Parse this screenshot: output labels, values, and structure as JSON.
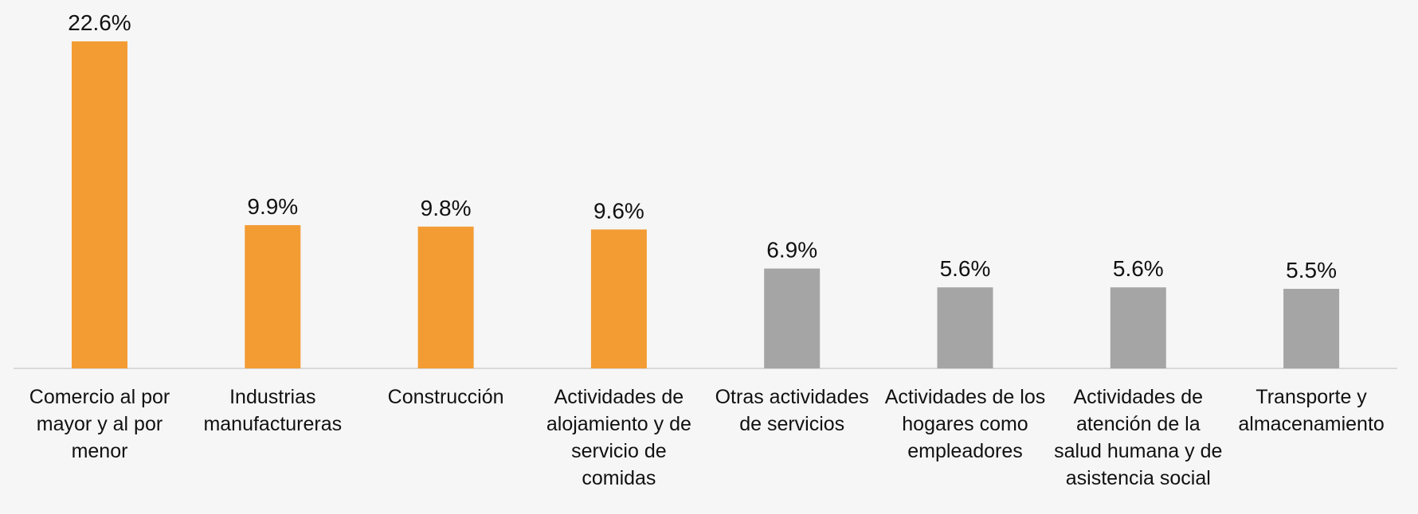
{
  "chart_data": {
    "type": "bar",
    "categories": [
      "Comercio al por mayor y al por menor",
      "Industrias manufactureras",
      "Construcción",
      "Actividades de alojamiento y de servicio de comidas",
      "Otras actividades de servicios",
      "Actividades de los hogares como empleadores",
      "Actividades de atención de la salud humana y de asistencia social",
      "Transporte y almacenamiento"
    ],
    "values": [
      22.6,
      9.9,
      9.8,
      9.6,
      6.9,
      5.6,
      5.6,
      5.5
    ],
    "value_labels": [
      "22.6%",
      "9.9%",
      "9.8%",
      "9.6%",
      "6.9%",
      "5.6%",
      "5.6%",
      "5.5%"
    ],
    "colors": [
      "#f39c34",
      "#f39c34",
      "#f39c34",
      "#f39c34",
      "#a6a5a5",
      "#a6a5a5",
      "#a6a5a5",
      "#a6a5a5"
    ]
  }
}
